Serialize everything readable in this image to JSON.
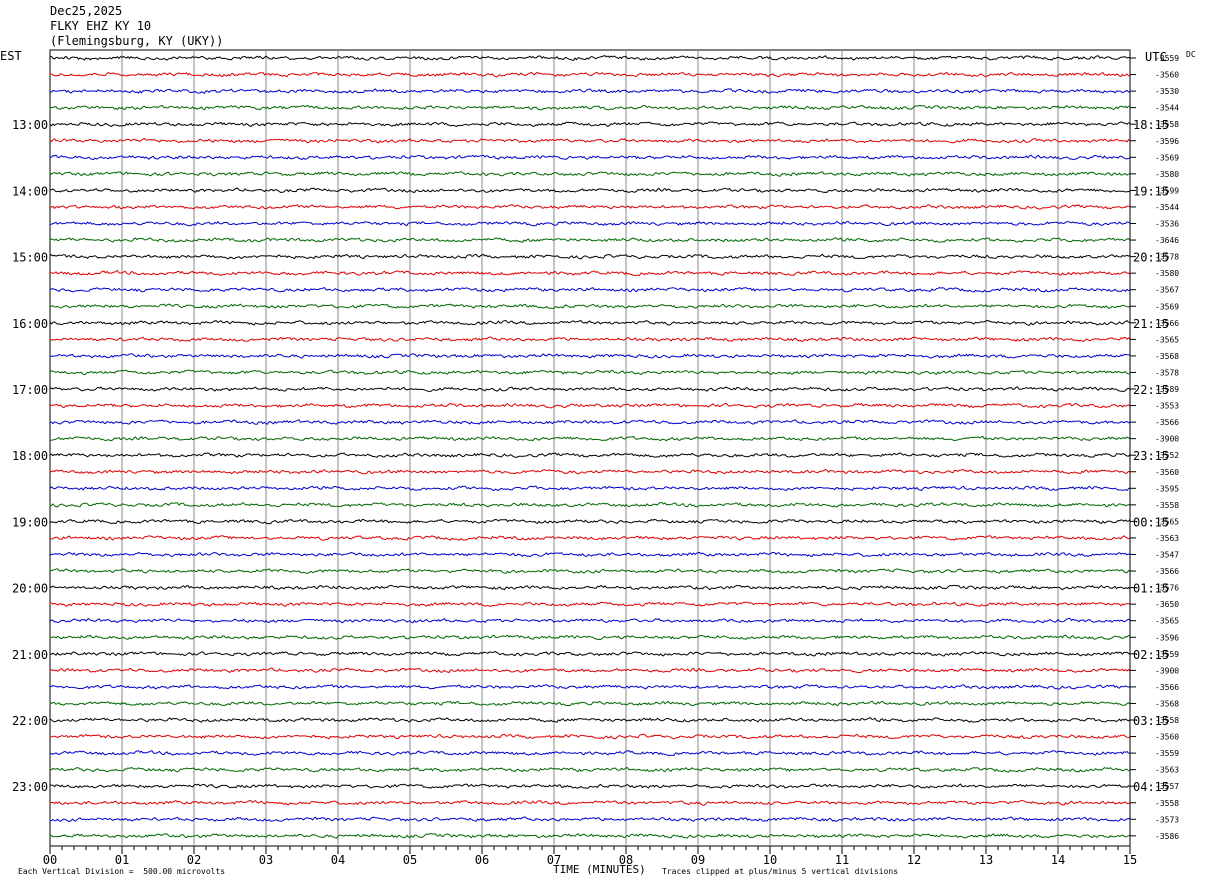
{
  "header": {
    "date": "Dec25,2025",
    "station": "FLKY EHZ KY 10",
    "location": "(Flemingsburg, KY (UKY))"
  },
  "chart_data": {
    "type": "line",
    "title": "Dec25,2025 FLKY EHZ KY 10 (Flemingsburg, KY (UKY))",
    "xlabel": "TIME (MINUTES)",
    "xlim": [
      0,
      15
    ],
    "x_ticks": [
      "00",
      "01",
      "02",
      "03",
      "04",
      "05",
      "06",
      "07",
      "08",
      "09",
      "10",
      "11",
      "12",
      "13",
      "14",
      "15"
    ],
    "left_axis_title": "EST",
    "right_axis_title": "UTC",
    "dc_label": "DC",
    "left_hour_labels": [
      "13:00",
      "14:00",
      "15:00",
      "16:00",
      "17:00",
      "18:00",
      "19:00",
      "20:00",
      "21:00",
      "22:00",
      "23:00"
    ],
    "right_hour_labels": [
      "18:15",
      "19:15",
      "20:15",
      "21:15",
      "22:15",
      "23:15",
      "00:15",
      "01:15",
      "02:15",
      "03:15",
      "04:15"
    ],
    "trace_colors": [
      "#000000",
      "#dd0000",
      "#0000cc",
      "#006600"
    ],
    "dc_offsets": [
      "-3559",
      "-3560",
      "-3530",
      "-3544",
      "-3558",
      "-3596",
      "-3569",
      "-3580",
      "-3599",
      "-3544",
      "-3536",
      "-3646",
      "-3578",
      "-3580",
      "-3567",
      "-3569",
      "-3566",
      "-3565",
      "-3568",
      "-3578",
      "-3589",
      "-3553",
      "-3566",
      "-3900",
      "-3552",
      "-3560",
      "-3595",
      "-3558",
      "-3565",
      "-3563",
      "-3547",
      "-3566",
      "-3576",
      "-3650",
      "-3565",
      "-3596",
      "-3559",
      "-3900",
      "-3566",
      "-3568",
      "-3558",
      "-3560",
      "-3559",
      "-3563",
      "-3557",
      "-3558",
      "-3573",
      "-3586"
    ],
    "grid": true,
    "footer_left": "Each Vertical Division =  500.00 microvolts",
    "footer_right": "Traces clipped at plus/minus 5 vertical divisions"
  }
}
